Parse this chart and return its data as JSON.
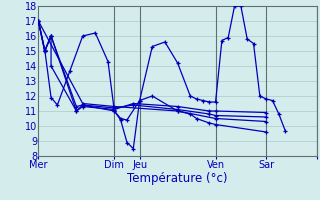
{
  "background_color": "#d4ecec",
  "grid_color": "#b0d0d0",
  "line_color": "#0000bb",
  "xlabel": "Température (°c)",
  "ylim": [
    8,
    18
  ],
  "yticks": [
    8,
    9,
    10,
    11,
    12,
    13,
    14,
    15,
    16,
    17,
    18
  ],
  "xlim": [
    0,
    264
  ],
  "day_positions": [
    0,
    72,
    96,
    168,
    216,
    264
  ],
  "day_labels": [
    "Mer",
    "Dim",
    "Jeu",
    "Ven",
    "Sar",
    ""
  ],
  "vline_positions": [
    72,
    96,
    168,
    216,
    264
  ],
  "series": [
    [
      0,
      17,
      6,
      15.1,
      12,
      11.9,
      18,
      11.4,
      30,
      13.7,
      42,
      16.0,
      54,
      16.2,
      66,
      14.3,
      72,
      11.0,
      78,
      10.4,
      84,
      8.9,
      90,
      8.5,
      96,
      11.7,
      108,
      15.3,
      120,
      15.6,
      132,
      14.2,
      144,
      12.0,
      150,
      11.8,
      156,
      11.7,
      162,
      11.6,
      168,
      11.6,
      174,
      15.7,
      180,
      15.9,
      186,
      18.0,
      192,
      18.0,
      198,
      15.8,
      204,
      15.5,
      210,
      12.0,
      216,
      11.8,
      222,
      11.7,
      228,
      10.8,
      234,
      9.7
    ],
    [
      0,
      17,
      6,
      15,
      12,
      16,
      12,
      14,
      36,
      11,
      42,
      11.4,
      72,
      11.0,
      78,
      10.5,
      84,
      10.4,
      96,
      11.7,
      108,
      12,
      132,
      11.0,
      144,
      10.8,
      150,
      10.5,
      162,
      10.2,
      168,
      10.1,
      216,
      9.6
    ],
    [
      0,
      17,
      6,
      15,
      12,
      16,
      36,
      11,
      42,
      11.3,
      72,
      11.1,
      90,
      11.5,
      132,
      11.3,
      162,
      11.0,
      168,
      11.0,
      216,
      10.9
    ],
    [
      0,
      17,
      6,
      15,
      12,
      16,
      36,
      11.3,
      42,
      11.4,
      72,
      11.2,
      90,
      11.4,
      132,
      11.1,
      162,
      10.8,
      168,
      10.7,
      216,
      10.6
    ],
    [
      0,
      17,
      42,
      11.5,
      72,
      11.3,
      132,
      11.0,
      168,
      10.5,
      216,
      10.3
    ]
  ]
}
